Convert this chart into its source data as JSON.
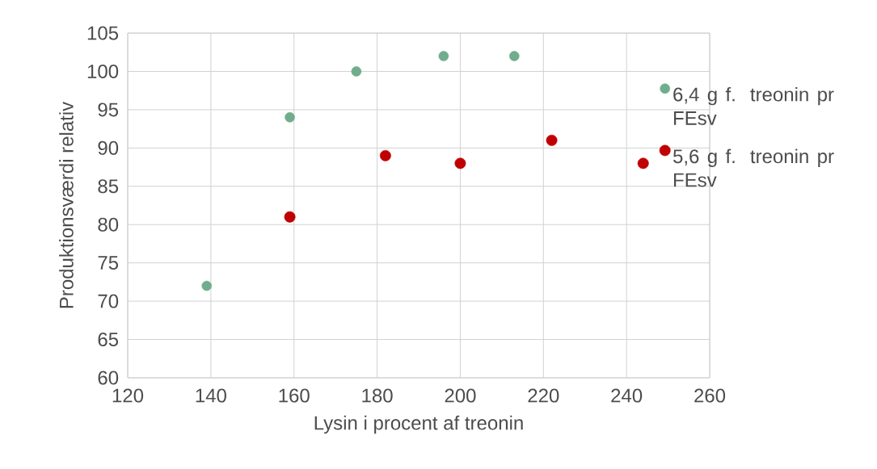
{
  "chart_data": {
    "type": "scatter",
    "xlabel": "Lysin i procent af treonin",
    "ylabel": "Produktionsværdi relativ",
    "xlim": [
      120,
      260
    ],
    "xticks": [
      120,
      140,
      160,
      180,
      200,
      220,
      240,
      260
    ],
    "ylim": [
      60,
      105
    ],
    "yticks": [
      60,
      65,
      70,
      75,
      80,
      85,
      90,
      95,
      100,
      105
    ],
    "grid": true,
    "legend": "right",
    "marker": "circle",
    "series": [
      {
        "name": "6,4 g f. treonin pr FEsv",
        "color": "#70ad8c",
        "x": [
          139,
          159,
          175,
          196,
          213
        ],
        "values": [
          72,
          94,
          100,
          102,
          102
        ]
      },
      {
        "name": "5,6 g f. treonin pr FEsv",
        "color": "#c00000",
        "x": [
          159,
          182,
          200,
          222,
          244
        ],
        "values": [
          81,
          89,
          88,
          91,
          88
        ]
      }
    ]
  }
}
